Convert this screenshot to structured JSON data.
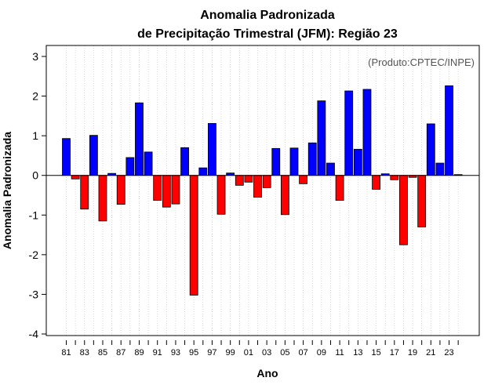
{
  "chart_data": {
    "type": "bar",
    "title_line1": "Anomalia Padronizada",
    "title_line2": "de Precipitação Trimestral (JFM): Região 23",
    "xlabel": "Ano",
    "ylabel": "Anomalia Padronizada",
    "source_note": "(Produto:CPTEC/INPE)",
    "ylim": [
      -4,
      3
    ],
    "yticks": [
      "-4",
      "-3",
      "-2",
      "-1",
      "0",
      "1",
      "2",
      "3"
    ],
    "ytick_values": [
      -4,
      -3,
      -2,
      -1,
      0,
      1,
      2,
      3
    ],
    "years": [
      "81",
      "82",
      "83",
      "84",
      "85",
      "86",
      "87",
      "88",
      "89",
      "90",
      "91",
      "92",
      "93",
      "94",
      "95",
      "96",
      "97",
      "98",
      "99",
      "00",
      "01",
      "02",
      "03",
      "04",
      "05",
      "06",
      "07",
      "08",
      "09",
      "10",
      "11",
      "12",
      "13",
      "14",
      "15",
      "16",
      "17",
      "18",
      "19",
      "20",
      "21",
      "22",
      "23",
      "24"
    ],
    "xtick_labels": [
      "81",
      "83",
      "85",
      "87",
      "89",
      "91",
      "93",
      "95",
      "97",
      "99",
      "01",
      "03",
      "05",
      "07",
      "09",
      "11",
      "13",
      "15",
      "17",
      "19",
      "21",
      "23"
    ],
    "values": [
      0.93,
      -0.09,
      -0.85,
      1.01,
      -1.15,
      0.05,
      -0.73,
      0.45,
      1.83,
      0.59,
      -0.63,
      -0.8,
      -0.72,
      0.7,
      -3.02,
      0.19,
      1.31,
      -0.98,
      0.06,
      -0.25,
      -0.17,
      -0.55,
      -0.31,
      0.68,
      -0.99,
      0.69,
      -0.21,
      0.82,
      1.88,
      0.31,
      -0.63,
      2.13,
      0.66,
      2.17,
      -0.35,
      0.04,
      -0.11,
      -1.75,
      -0.05,
      -1.3,
      1.3,
      0.31,
      2.26,
      0.02
    ],
    "positive_color": "#0000ff",
    "negative_color": "#ff0000",
    "grid": "vertical dotted"
  }
}
